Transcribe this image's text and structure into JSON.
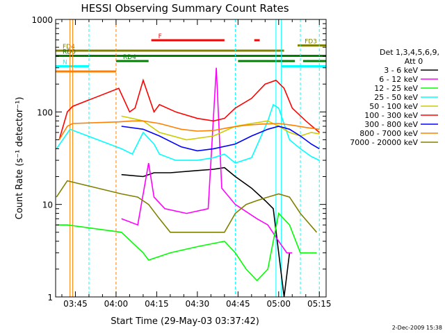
{
  "chart_data": {
    "type": "line",
    "title": "HESSI Observing Summary Count Rates",
    "xlabel": "Start Time (29-May-03 03:37:42)",
    "ylabel": "Count Rate (s⁻¹ detector⁻¹)",
    "y_scale": "log",
    "xlim": [
      "03:37:42",
      "05:17:30"
    ],
    "ylim": [
      1,
      1000
    ],
    "x_ticks": [
      "03:45",
      "04:00",
      "04:15",
      "04:30",
      "04:45",
      "05:00",
      "05:15"
    ],
    "y_ticks": [
      "1",
      "10",
      "100",
      "1000"
    ],
    "grid": false,
    "legend_position": "right",
    "legend_header": [
      "Det 1,3,4,5,6,9,",
      "Att 0"
    ],
    "series": [
      {
        "name": "3 - 6 keV",
        "color": "#000000",
        "x": [
          "04:02",
          "04:10",
          "04:14",
          "04:20",
          "04:28",
          "04:36",
          "04:40",
          "04:44",
          "04:50",
          "04:55",
          "04:58",
          "05:00",
          "05:02",
          "05:04"
        ],
        "values": [
          21,
          20,
          22,
          22,
          23,
          24,
          25,
          20,
          15,
          11,
          9,
          3,
          1,
          3
        ]
      },
      {
        "name": "6 - 12 keV",
        "color": "#ff00ff",
        "x": [
          "04:02",
          "04:08",
          "04:12",
          "04:14",
          "04:18",
          "04:26",
          "04:34",
          "04:37",
          "04:39",
          "04:44",
          "04:52",
          "04:56",
          "05:00",
          "05:03",
          "05:05"
        ],
        "values": [
          7,
          6,
          28,
          12,
          9,
          8,
          9,
          300,
          15,
          10,
          7,
          6,
          4,
          3,
          3
        ]
      },
      {
        "name": "12 - 25 keV",
        "color": "#00ff00",
        "x": [
          "03:38",
          "03:42",
          "04:02",
          "04:10",
          "04:12",
          "04:20",
          "04:30",
          "04:40",
          "04:44",
          "04:48",
          "04:52",
          "04:56",
          "05:00",
          "05:04",
          "05:08",
          "05:14"
        ],
        "values": [
          6,
          6,
          5,
          3,
          2.5,
          3,
          3.5,
          4,
          3,
          2,
          1.5,
          2,
          8,
          6,
          3,
          3
        ]
      },
      {
        "name": "25 - 50 keV",
        "color": "#00ffff",
        "x": [
          "03:38",
          "03:43",
          "04:02",
          "04:06",
          "04:10",
          "04:14",
          "04:16",
          "04:22",
          "04:30",
          "04:36",
          "04:40",
          "04:44",
          "04:50",
          "04:56",
          "04:58",
          "05:00",
          "05:04",
          "05:08",
          "05:12",
          "05:15"
        ],
        "values": [
          40,
          65,
          40,
          35,
          60,
          45,
          35,
          30,
          30,
          32,
          35,
          28,
          32,
          80,
          120,
          110,
          50,
          40,
          33,
          30
        ]
      },
      {
        "name": "50 - 100 keV",
        "color": "#cccc00",
        "x": [
          "04:02",
          "04:06",
          "04:10",
          "04:16",
          "04:26",
          "04:36",
          "04:44",
          "04:50",
          "04:56",
          "05:00",
          "05:04",
          "05:08",
          "05:12",
          "05:15"
        ],
        "values": [
          90,
          85,
          80,
          60,
          50,
          55,
          70,
          75,
          80,
          70,
          60,
          55,
          60,
          58
        ]
      },
      {
        "name": "100 - 300 keV",
        "color": "#ff0000",
        "x": [
          "03:39",
          "03:42",
          "03:44",
          "04:01",
          "04:05",
          "04:07",
          "04:10",
          "04:14",
          "04:16",
          "04:22",
          "04:30",
          "04:36",
          "04:40",
          "04:44",
          "04:50",
          "04:55",
          "04:59",
          "05:02",
          "05:05",
          "05:10",
          "05:15"
        ],
        "values": [
          50,
          100,
          115,
          180,
          100,
          110,
          220,
          100,
          120,
          100,
          85,
          80,
          85,
          110,
          140,
          200,
          220,
          180,
          110,
          80,
          60
        ]
      },
      {
        "name": "300 - 800 keV",
        "color": "#0000ff",
        "x": [
          "04:02",
          "04:10",
          "04:16",
          "04:24",
          "04:30",
          "04:36",
          "04:44",
          "04:50",
          "04:56",
          "05:00",
          "05:04",
          "05:08",
          "05:12",
          "05:15"
        ],
        "values": [
          70,
          65,
          55,
          42,
          38,
          40,
          45,
          55,
          65,
          70,
          65,
          55,
          45,
          40
        ]
      },
      {
        "name": "800 - 7000 keV",
        "color": "#ff8000",
        "x": [
          "03:39",
          "03:42",
          "03:44",
          "04:01",
          "04:06",
          "04:10",
          "04:16",
          "04:24",
          "04:30",
          "04:36",
          "04:42",
          "04:48",
          "04:54",
          "05:00",
          "05:05",
          "05:10",
          "05:15"
        ],
        "values": [
          50,
          70,
          75,
          78,
          80,
          80,
          75,
          65,
          62,
          63,
          68,
          72,
          74,
          75,
          72,
          68,
          65
        ]
      },
      {
        "name": "7000 - 20000 keV",
        "color": "#808000",
        "x": [
          "03:38",
          "03:42",
          "04:02",
          "04:08",
          "04:12",
          "04:16",
          "04:20",
          "04:26",
          "04:34",
          "04:40",
          "04:44",
          "04:48",
          "04:52",
          "04:56",
          "05:00",
          "05:04",
          "05:08",
          "05:14"
        ],
        "values": [
          12,
          18,
          13,
          12,
          10,
          7,
          5,
          5,
          5,
          5,
          8,
          10,
          11,
          12,
          13,
          12,
          8,
          5
        ]
      }
    ],
    "flag_bars": [
      {
        "label": "F",
        "color": "#ff0000",
        "segments": [
          [
            "04:13",
            "04:40"
          ],
          [
            "04:51",
            "04:53"
          ]
        ]
      },
      {
        "label": "FD3",
        "color": "#808000",
        "segments": [
          [
            "05:07",
            "05:17:30"
          ]
        ]
      },
      {
        "label": "FD4",
        "color": "#808000",
        "segments": [
          [
            "03:37:42",
            "05:02"
          ]
        ]
      },
      {
        "label": "RD0",
        "color": "#008000",
        "segments": [
          [
            "03:37:42",
            "05:17:30"
          ]
        ]
      },
      {
        "label": "RD4",
        "color": "#008000",
        "segments": [
          [
            "04:00",
            "04:12"
          ],
          [
            "04:45",
            "05:06"
          ],
          [
            "05:09",
            "05:17:30"
          ]
        ]
      },
      {
        "label": "N",
        "color": "#00ffff",
        "segments": [
          [
            "03:37:42",
            "03:50"
          ],
          [
            "05:01",
            "05:17:30"
          ]
        ]
      },
      {
        "label": "",
        "color": "#ff8000",
        "segments": [
          [
            "03:37:42",
            "04:00"
          ]
        ]
      }
    ],
    "vertical_lines": [
      {
        "x": "03:43",
        "color": "#ff8000",
        "style": "solid"
      },
      {
        "x": "03:44",
        "color": "#ff8000",
        "style": "solid"
      },
      {
        "x": "03:50",
        "color": "#00ffff",
        "style": "dashed"
      },
      {
        "x": "04:00",
        "color": "#ff8000",
        "style": "dashed"
      },
      {
        "x": "04:44",
        "color": "#00ffff",
        "style": "dashed"
      },
      {
        "x": "04:59",
        "color": "#00ffff",
        "style": "solid"
      },
      {
        "x": "05:01",
        "color": "#00ffff",
        "style": "solid"
      },
      {
        "x": "05:08",
        "color": "#00ffff",
        "style": "dashed"
      },
      {
        "x": "05:15",
        "color": "#00ffff",
        "style": "dashed"
      }
    ]
  },
  "footer_date": "2-Dec-2009 15:38",
  "colors": {
    "background": "#ffffff",
    "axes": "#000000"
  }
}
